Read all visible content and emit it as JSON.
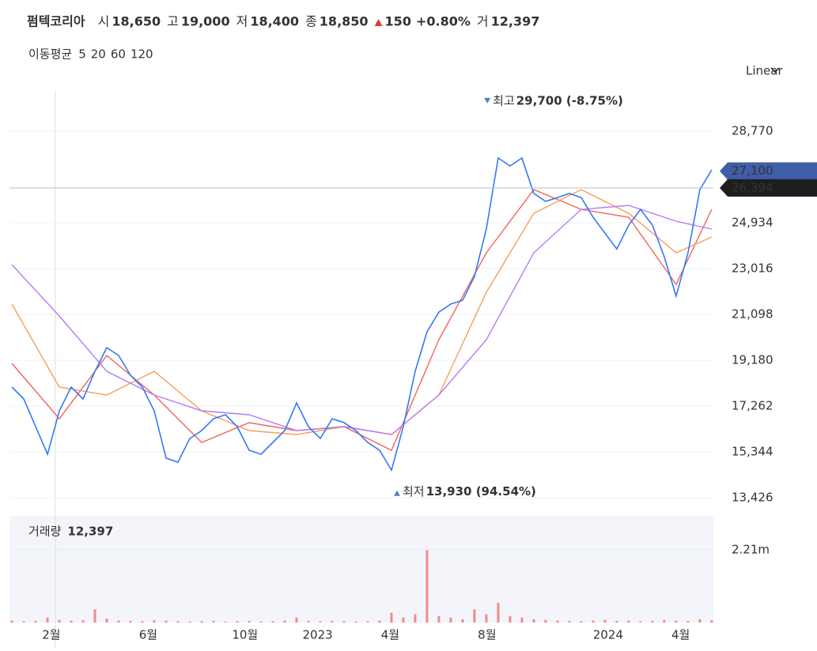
{
  "header": {
    "name": "펌텍코리아",
    "items": [
      {
        "label": "시",
        "value": "18,650"
      },
      {
        "label": "고",
        "value": "19,000"
      },
      {
        "label": "저",
        "value": "18,400"
      },
      {
        "label": "종",
        "value": "18,850"
      }
    ],
    "change": "150",
    "change_pct": "+0.80%",
    "volume_label": "거",
    "volume": "12,397"
  },
  "ma_legend": {
    "title": "이동평균",
    "periods": [
      "5",
      "20",
      "60",
      "120"
    ]
  },
  "scale_mode": "Linear",
  "chart_data": [
    {
      "type": "line",
      "x": [
        -0.63,
        -0.14,
        0.35,
        0.84,
        1.33,
        1.82,
        2.31,
        2.8,
        3.29,
        3.78,
        4.27,
        4.76,
        5.25,
        5.74,
        6.23,
        6.72,
        7.21,
        7.7,
        8.19,
        8.68,
        9.17,
        9.66,
        10.15,
        10.64,
        11.13,
        11.62,
        12.11,
        12.6,
        13.09,
        13.58,
        14.07,
        14.56,
        15.05,
        15.54,
        16.03,
        16.52,
        17.01,
        17.5,
        17.99,
        18.48,
        18.97,
        19.46,
        19.95,
        20.44,
        20.93,
        21.42,
        21.91,
        22.4,
        22.89,
        23.38,
        23.87,
        24.36,
        24.85,
        25.34,
        25.83,
        26.32,
        26.81,
        27.3,
        27.79,
        28.28
      ],
      "series": [
        {
          "name": "종가",
          "color": "#3478f6",
          "values": [
            18055,
            17560,
            16400,
            15245,
            17060,
            18055,
            17560,
            18715,
            19710,
            19380,
            18550,
            18055,
            17060,
            15080,
            14915,
            15905,
            16235,
            16730,
            16900,
            16400,
            15410,
            15245,
            15740,
            16235,
            17395,
            16400,
            15905,
            16730,
            16570,
            16235,
            15740,
            15410,
            14580,
            16400,
            18715,
            20370,
            21195,
            21530,
            21690,
            22685,
            24670,
            27645,
            27315,
            27645,
            26160,
            25830,
            25990,
            26160,
            25990,
            25165,
            24500,
            23840,
            24835,
            25495,
            24835,
            23510,
            21860,
            23675,
            26320,
            27150
          ]
        }
      ],
      "ma_x": [
        -0.63,
        1.33,
        3.29,
        5.25,
        7.21,
        9.17,
        11.13,
        13.09,
        15.05,
        17.01,
        18.97,
        20.93,
        22.89,
        24.85,
        26.81,
        28.28
      ],
      "ma_series": [
        {
          "name": "20",
          "color": "#f0645a",
          "values": [
            19048,
            16732,
            19378,
            17725,
            15740,
            16567,
            16237,
            16402,
            15410,
            20040,
            23677,
            26323,
            25496,
            25165,
            22354,
            25496
          ]
        },
        {
          "name": "60",
          "color": "#f5a05a",
          "values": [
            21528,
            18055,
            17725,
            18717,
            17063,
            16237,
            16071,
            16402,
            16071,
            17725,
            22024,
            25331,
            26323,
            25331,
            23677,
            24339
          ]
        },
        {
          "name": "120",
          "color": "#b57cf2",
          "values": [
            23181,
            21032,
            18717,
            17725,
            17063,
            16898,
            16237,
            16402,
            16071,
            17725,
            20040,
            23677,
            25496,
            25661,
            25000,
            24669
          ]
        }
      ],
      "xlim": [
        -0.73,
        28.35
      ],
      "ylim": [
        13095,
        30456
      ],
      "xticks": [
        {
          "value": 1,
          "label": "2월"
        },
        {
          "value": 5,
          "label": "6월"
        },
        {
          "value": 9,
          "label": "10월"
        },
        {
          "value": 12,
          "label": "2023"
        },
        {
          "value": 15,
          "label": "4월"
        },
        {
          "value": 19,
          "label": "8월"
        },
        {
          "value": 24,
          "label": "2024"
        },
        {
          "value": 27,
          "label": "4월"
        }
      ],
      "yticks": [
        {
          "value": 13426,
          "label": "13,426"
        },
        {
          "value": 15344,
          "label": "15,344"
        },
        {
          "value": 17262,
          "label": "17,262"
        },
        {
          "value": 19180,
          "label": "19,180"
        },
        {
          "value": 21098,
          "label": "21,098"
        },
        {
          "value": 23016,
          "label": "23,016"
        },
        {
          "value": 24934,
          "label": "24,934"
        },
        {
          "value": 28770,
          "label": "28,770"
        }
      ],
      "grid": true,
      "annotations": [
        {
          "label": "최고",
          "text": "29,700 (-8.75%)",
          "x": 19.01,
          "value": 29700
        },
        {
          "label": "최저",
          "text": "13,930 (94.54%)",
          "x": 15.28,
          "value": 13930
        }
      ],
      "price_tags": [
        {
          "value": 27100,
          "label": "27,100",
          "color": "#3f5ea8"
        },
        {
          "value": 26394,
          "label": "26,394",
          "color": "#1e1e1e"
        }
      ]
    },
    {
      "type": "bar",
      "title": "거래량",
      "title_value": "12,397",
      "color": "#f28b8b",
      "x": [
        -0.63,
        -0.14,
        0.35,
        0.84,
        1.33,
        1.82,
        2.31,
        2.8,
        3.29,
        3.78,
        4.27,
        4.76,
        5.25,
        5.74,
        6.23,
        6.72,
        7.21,
        7.7,
        8.19,
        8.68,
        9.17,
        9.66,
        10.15,
        10.64,
        11.13,
        11.62,
        12.11,
        12.6,
        13.09,
        13.58,
        14.07,
        14.56,
        15.05,
        15.54,
        16.03,
        16.52,
        17.01,
        17.5,
        17.99,
        18.48,
        18.97,
        19.46,
        19.95,
        20.44,
        20.93,
        21.42,
        21.91,
        22.4,
        22.89,
        23.38,
        23.87,
        24.36,
        24.85,
        25.34,
        25.83,
        26.32,
        26.81,
        27.3,
        27.79,
        28.28
      ],
      "values": [
        60000,
        40000,
        50000,
        150000,
        80000,
        60000,
        70000,
        400000,
        120000,
        60000,
        50000,
        40000,
        70000,
        60000,
        40000,
        30000,
        40000,
        50000,
        30000,
        40000,
        50000,
        30000,
        40000,
        60000,
        150000,
        50000,
        40000,
        50000,
        40000,
        30000,
        40000,
        60000,
        300000,
        150000,
        250000,
        2200000,
        200000,
        150000,
        100000,
        400000,
        250000,
        600000,
        200000,
        150000,
        100000,
        80000,
        60000,
        50000,
        40000,
        60000,
        80000,
        50000,
        60000,
        40000,
        50000,
        80000,
        60000,
        50000,
        100000,
        70000
      ],
      "xlim": [
        -0.73,
        28.35
      ],
      "ylim": [
        0,
        3240000
      ],
      "yticks": [
        {
          "value": 2210000,
          "label": "2.21m"
        }
      ]
    }
  ]
}
